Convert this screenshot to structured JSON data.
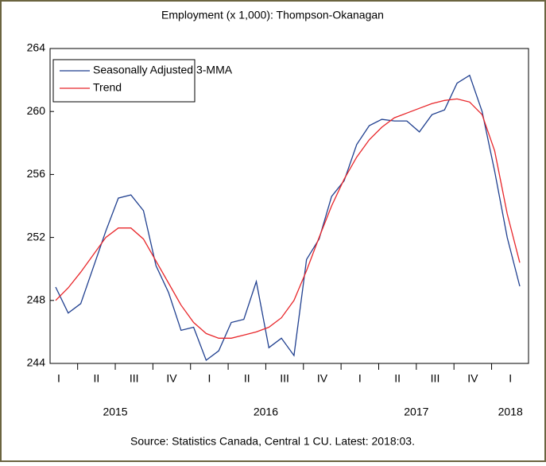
{
  "chart_data": {
    "type": "line",
    "title": "Employment (x 1,000): Thompson-Okanagan",
    "source": "Source:  Statistics Canada, Central 1 CU. Latest: 2018:03.",
    "categories": [
      "I",
      null,
      null,
      "II",
      null,
      null,
      "III",
      null,
      null,
      "IV",
      null,
      null,
      "I",
      null,
      null,
      "II",
      null,
      null,
      "III",
      null,
      null,
      "IV",
      null,
      null,
      "I",
      null,
      null,
      "II",
      null,
      null,
      "III",
      null,
      null,
      "IV",
      null,
      null,
      "I",
      null
    ],
    "year_labels": [
      "2015",
      "2016",
      "2017",
      "2018"
    ],
    "series": [
      {
        "name": "Seasonally Adjusted 3-MMA",
        "color": "#1f3f8f",
        "values": [
          248.85,
          247.2,
          247.8,
          250.1,
          252.4,
          254.5,
          254.7,
          253.7,
          250.2,
          248.5,
          246.1,
          246.3,
          244.2,
          244.8,
          246.6,
          246.8,
          249.2,
          245.0,
          245.6,
          244.5,
          250.6,
          251.9,
          254.6,
          255.6,
          257.9,
          259.1,
          259.5,
          259.4,
          259.4,
          258.7,
          259.8,
          260.1,
          261.8,
          262.3,
          260.0,
          256.2,
          252.0,
          248.9
        ]
      },
      {
        "name": "Trend",
        "color": "#e8262a",
        "values": [
          248.0,
          248.8,
          249.8,
          250.9,
          252.0,
          252.6,
          252.6,
          251.9,
          250.5,
          249.1,
          247.7,
          246.6,
          245.9,
          245.6,
          245.6,
          245.8,
          246.0,
          246.3,
          246.9,
          248.0,
          249.9,
          252.0,
          254.0,
          255.7,
          257.1,
          258.2,
          259.0,
          259.6,
          259.9,
          260.2,
          260.5,
          260.7,
          260.8,
          260.6,
          259.8,
          257.5,
          253.5,
          250.4
        ]
      }
    ],
    "ylim": [
      244,
      264
    ],
    "yticks": [
      244,
      248,
      252,
      256,
      260,
      264
    ],
    "grid": false,
    "legend": "upper left"
  }
}
